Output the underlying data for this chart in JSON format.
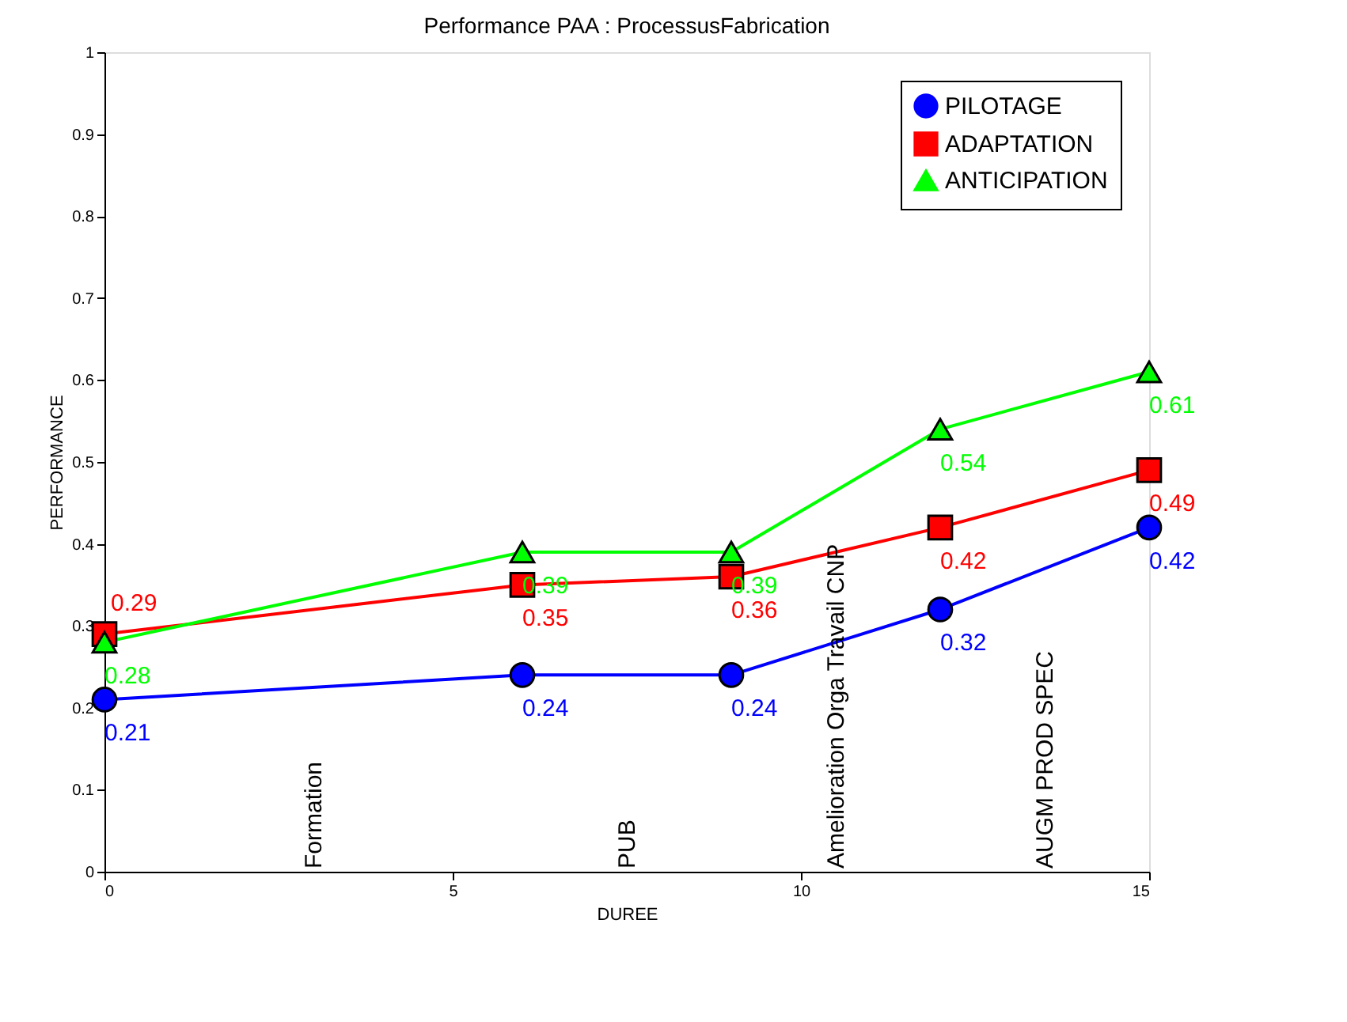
{
  "chart_data": {
    "type": "line",
    "title": "Performance PAA : ProcessusFabrication",
    "xlabel": "DUREE",
    "ylabel": "PERFORMANCE",
    "x": [
      0,
      6,
      9,
      12,
      15
    ],
    "series": [
      {
        "name": "PILOTAGE",
        "color": "#0000ff",
        "marker": "circle",
        "values": [
          0.21,
          0.24,
          0.24,
          0.32,
          0.42
        ]
      },
      {
        "name": "ADAPTATION",
        "color": "#ff0000",
        "marker": "square",
        "values": [
          0.29,
          0.35,
          0.36,
          0.42,
          0.49
        ]
      },
      {
        "name": "ANTICIPATION",
        "color": "#00ff00",
        "marker": "triangle",
        "values": [
          0.28,
          0.39,
          0.39,
          0.54,
          0.61
        ]
      }
    ],
    "xlim": [
      0,
      15
    ],
    "xticks": [
      0,
      5,
      10,
      15
    ],
    "ylim": [
      0,
      1
    ],
    "yticks": [
      0,
      0.1,
      0.2,
      0.3,
      0.4,
      0.5,
      0.6,
      0.7,
      0.8,
      0.9,
      1
    ],
    "grid": false,
    "legend": "top right",
    "data_labels": true,
    "line_style": "solid",
    "annotations": [
      "Formation",
      "PUB",
      "Amelioration Orga Travail CNP",
      "AUGM PROD SPEC"
    ]
  }
}
